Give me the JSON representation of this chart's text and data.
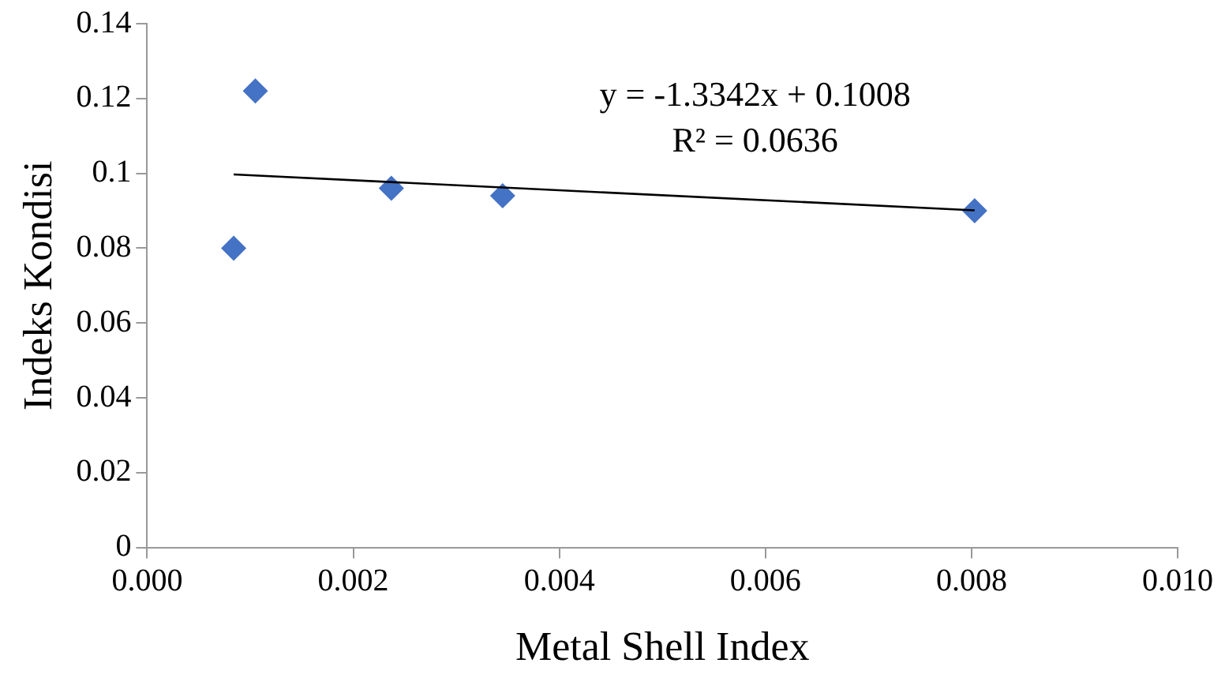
{
  "chart_data": {
    "type": "scatter",
    "xlabel": "Metal Shell Index",
    "ylabel": "Indeks Kondisi",
    "xlim": [
      0,
      0.01
    ],
    "xticks": [
      {
        "value": 0,
        "label": "0.000"
      },
      {
        "value": 0.002,
        "label": "0.002"
      },
      {
        "value": 0.004,
        "label": "0.004"
      },
      {
        "value": 0.006,
        "label": "0.006"
      },
      {
        "value": 0.008,
        "label": "0.008"
      },
      {
        "value": 0.01,
        "label": "0.010"
      }
    ],
    "ylim": [
      0,
      0.14
    ],
    "yticks": [
      0,
      0.02,
      0.04,
      0.06,
      0.08,
      0.1,
      0.12,
      0.14
    ],
    "grid": false,
    "legend": false,
    "marker": "diamond",
    "series": [
      {
        "type": "scatter",
        "color": "#4472c4",
        "x": [
          0.00084,
          0.00105,
          0.00237,
          0.00345,
          0.00803
        ],
        "values": [
          0.08,
          0.122,
          0.096,
          0.094,
          0.09
        ]
      },
      {
        "type": "line",
        "color": "#000000",
        "marker": "none",
        "x": [
          0.00084,
          0.00803
        ],
        "values": [
          0.0997,
          0.0901
        ]
      }
    ],
    "annotations": [
      "y = -1.3342x + 0.1008",
      "R² = 0.0636"
    ]
  }
}
